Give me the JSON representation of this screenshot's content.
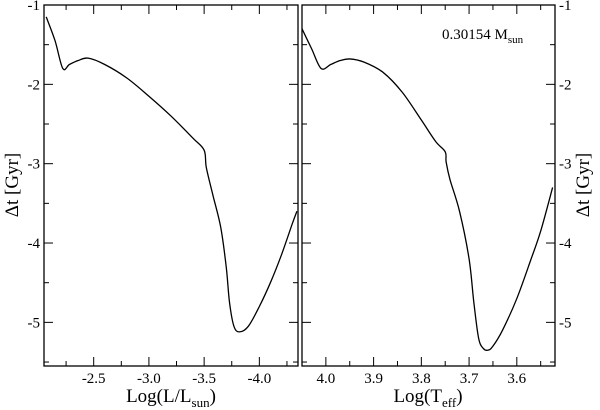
{
  "chart_data": [
    {
      "type": "line",
      "panel": "left",
      "xlabel": "Log(L/L",
      "xlabel_sub": "sun",
      "xlabel_close": ")",
      "ylabel": "Δt [Gyr]",
      "xlim": [
        -2.05,
        -4.35
      ],
      "ylim": [
        -5.55,
        -1.0
      ],
      "x_reversed": true,
      "x_ticks": [
        -2.5,
        -3.0,
        -3.5,
        -4.0
      ],
      "x_tick_labels": [
        "-2.5",
        "-3.0",
        "-3.5",
        "-4.0"
      ],
      "y_ticks": [
        -1,
        -2,
        -3,
        -4,
        -5
      ],
      "y_tick_labels": [
        "-1",
        "-2",
        "-3",
        "-4",
        "-5"
      ],
      "grid": false,
      "series": [
        {
          "x": [
            -2.07,
            -2.15,
            -2.22,
            -2.28,
            -2.36,
            -2.45,
            -2.6,
            -2.8,
            -3.0,
            -3.2,
            -3.4,
            -3.5,
            -3.52,
            -3.58,
            -3.65,
            -3.7,
            -3.73,
            -3.77,
            -3.82,
            -3.9,
            -4.0,
            -4.1,
            -4.2,
            -4.3,
            -4.34
          ],
          "y": [
            -1.15,
            -1.45,
            -1.8,
            -1.75,
            -1.7,
            -1.67,
            -1.75,
            -1.92,
            -2.15,
            -2.4,
            -2.68,
            -2.83,
            -3.05,
            -3.4,
            -3.8,
            -4.3,
            -4.75,
            -5.05,
            -5.12,
            -5.05,
            -4.8,
            -4.5,
            -4.15,
            -3.75,
            -3.6
          ]
        }
      ]
    },
    {
      "type": "line",
      "panel": "right",
      "xlabel": "Log(T",
      "xlabel_sub": "eff",
      "xlabel_close": ")",
      "ylabel": "Δt [Gyr]",
      "annotation": "0.30154 M",
      "annotation_sub": "sun",
      "xlim": [
        4.05,
        3.52
      ],
      "ylim": [
        -5.55,
        -1.0
      ],
      "x_reversed": true,
      "x_ticks": [
        4.0,
        3.9,
        3.8,
        3.7,
        3.6
      ],
      "x_tick_labels": [
        "4.0",
        "3.9",
        "3.8",
        "3.7",
        "3.6"
      ],
      "y_ticks": [
        -1,
        -2,
        -3,
        -4,
        -5
      ],
      "y_tick_labels": [
        "-1",
        "-2",
        "-3",
        "-4",
        "-5"
      ],
      "grid": false,
      "series": [
        {
          "x": [
            4.05,
            4.03,
            4.01,
            3.99,
            3.97,
            3.95,
            3.92,
            3.88,
            3.84,
            3.8,
            3.77,
            3.75,
            3.748,
            3.74,
            3.72,
            3.7,
            3.69,
            3.68,
            3.67,
            3.66,
            3.65,
            3.63,
            3.6,
            3.57,
            3.55,
            3.525
          ],
          "y": [
            -1.3,
            -1.55,
            -1.8,
            -1.75,
            -1.7,
            -1.68,
            -1.72,
            -1.85,
            -2.1,
            -2.45,
            -2.72,
            -2.85,
            -2.98,
            -3.2,
            -3.6,
            -4.2,
            -4.75,
            -5.2,
            -5.33,
            -5.35,
            -5.3,
            -5.1,
            -4.7,
            -4.2,
            -3.85,
            -3.3
          ]
        }
      ]
    }
  ]
}
